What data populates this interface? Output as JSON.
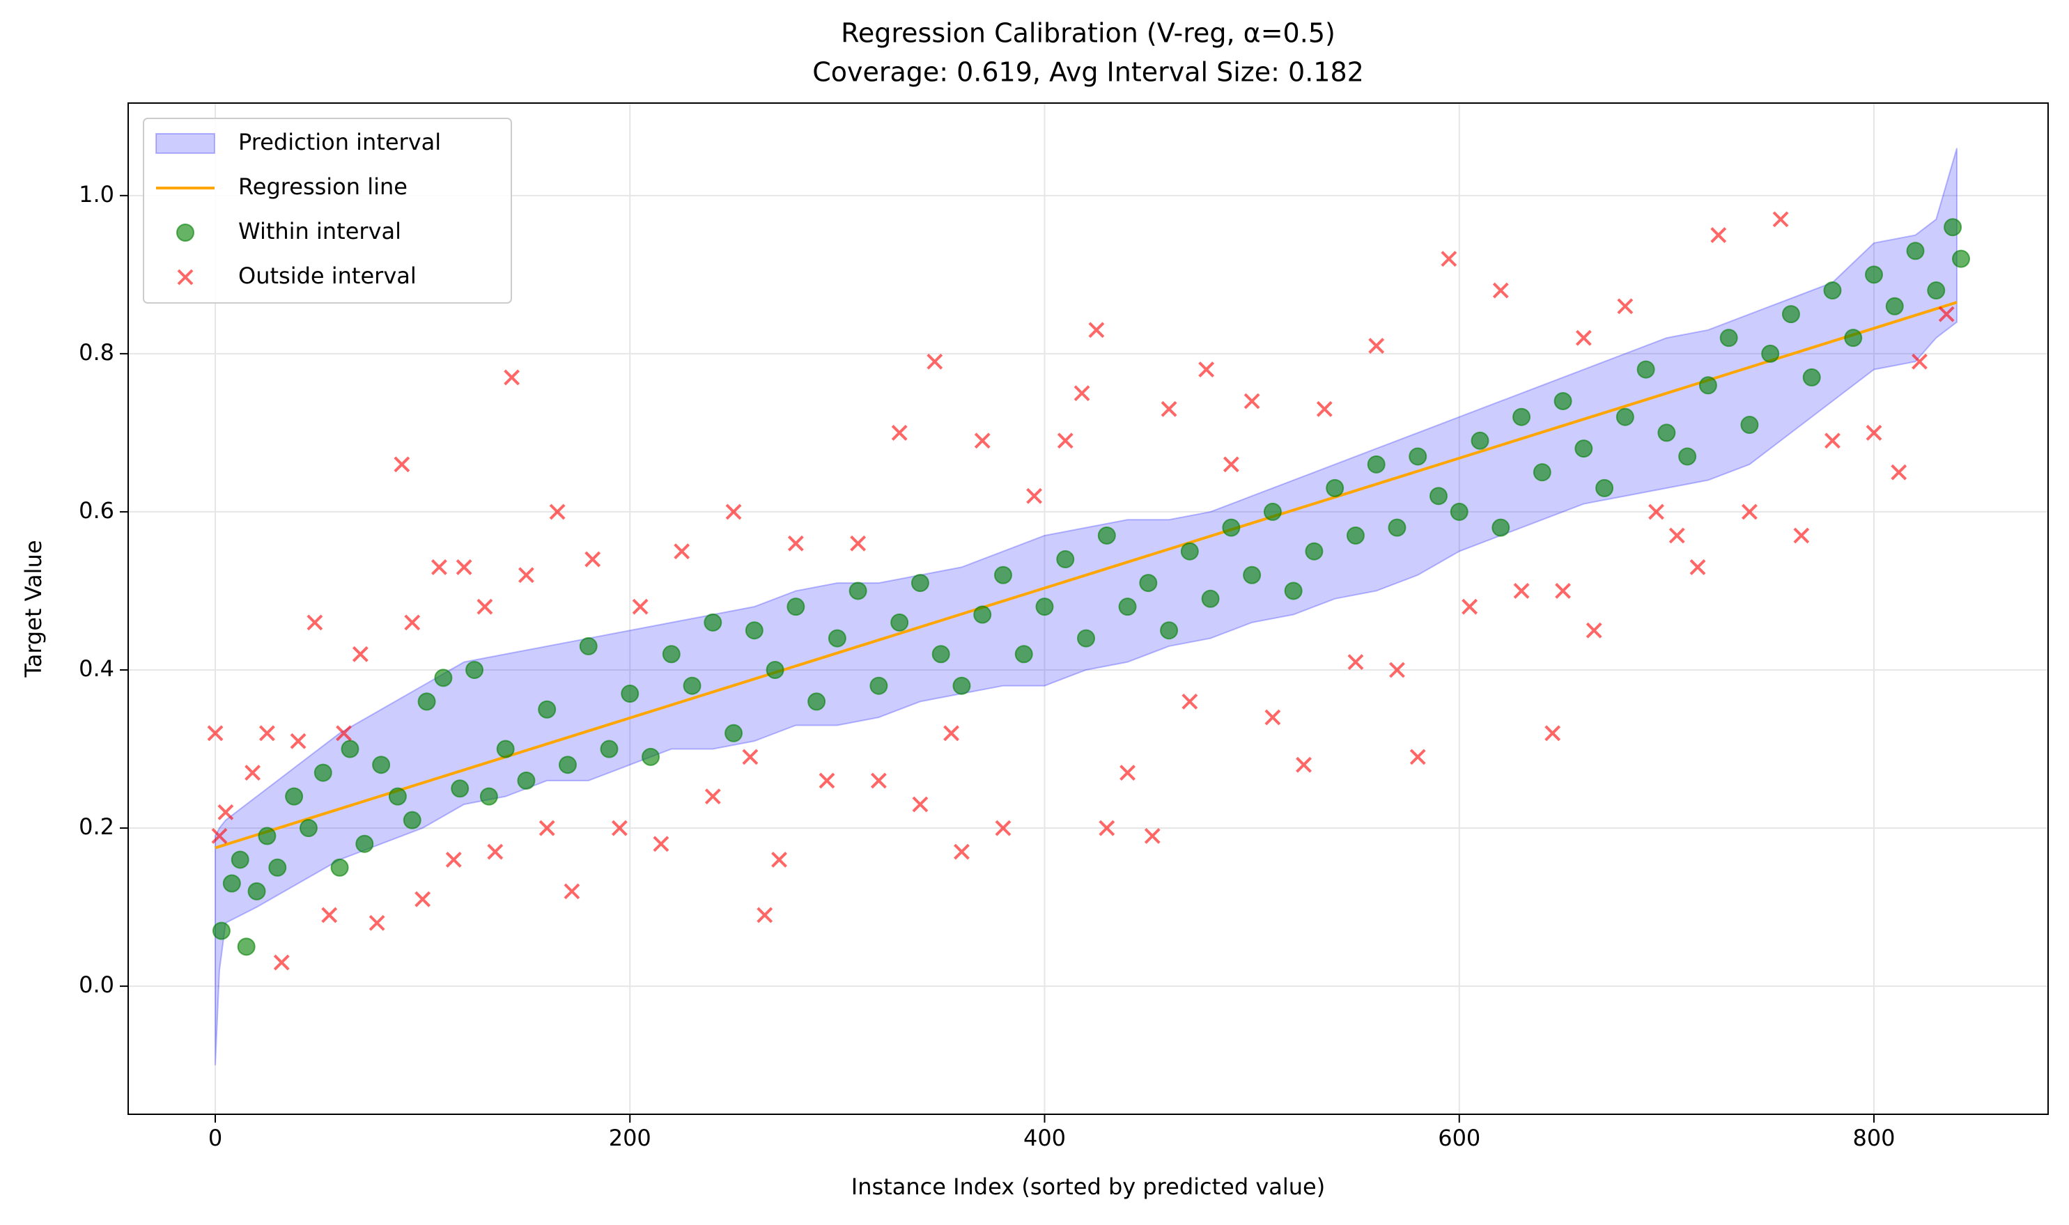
{
  "chart_data": {
    "type": "scatter",
    "title": "Regression Calibration (V-reg, α=0.5)",
    "subtitle": "Coverage: 0.619, Avg Interval Size: 0.182",
    "x_label": "Instance Index (sorted by predicted value)",
    "y_label": "Target Value",
    "xlim": [
      -42,
      884
    ],
    "ylim": [
      -0.162,
      1.117
    ],
    "xticks": [
      0,
      200,
      400,
      600,
      800
    ],
    "yticks": [
      {
        "value": 0,
        "label": "0.0"
      },
      0.2,
      0.4,
      0.6,
      0.8,
      {
        "value": 1,
        "label": "1.0"
      }
    ],
    "grid": true,
    "legend": "upper left",
    "series": [
      {
        "name": "Prediction interval",
        "kind": "band",
        "color": "#0000ff",
        "x": [
          0,
          2,
          5,
          20,
          40,
          60,
          80,
          100,
          120,
          140,
          160,
          180,
          200,
          220,
          240,
          260,
          280,
          300,
          320,
          340,
          360,
          380,
          400,
          420,
          440,
          460,
          480,
          500,
          520,
          540,
          560,
          580,
          600,
          620,
          640,
          660,
          680,
          700,
          720,
          740,
          760,
          780,
          800,
          820,
          830,
          840
        ],
        "lower": [
          -0.1,
          0.02,
          0.08,
          0.1,
          0.13,
          0.16,
          0.18,
          0.2,
          0.23,
          0.24,
          0.26,
          0.26,
          0.28,
          0.3,
          0.3,
          0.31,
          0.33,
          0.33,
          0.34,
          0.36,
          0.37,
          0.38,
          0.38,
          0.4,
          0.41,
          0.43,
          0.44,
          0.46,
          0.47,
          0.49,
          0.5,
          0.52,
          0.55,
          0.57,
          0.59,
          0.61,
          0.62,
          0.63,
          0.64,
          0.66,
          0.7,
          0.74,
          0.78,
          0.79,
          0.82,
          0.84
        ],
        "upper": [
          0.19,
          0.2,
          0.21,
          0.24,
          0.28,
          0.32,
          0.35,
          0.38,
          0.41,
          0.42,
          0.43,
          0.44,
          0.45,
          0.46,
          0.47,
          0.48,
          0.5,
          0.51,
          0.51,
          0.52,
          0.53,
          0.55,
          0.57,
          0.58,
          0.59,
          0.59,
          0.6,
          0.62,
          0.64,
          0.66,
          0.68,
          0.7,
          0.72,
          0.74,
          0.76,
          0.78,
          0.8,
          0.82,
          0.83,
          0.85,
          0.87,
          0.89,
          0.94,
          0.95,
          0.97,
          1.06
        ]
      },
      {
        "name": "Regression line",
        "kind": "line",
        "color": "#ffa500",
        "x": [
          0,
          840
        ],
        "values": [
          0.175,
          0.865
        ]
      },
      {
        "name": "Within interval",
        "kind": "circle",
        "color": "#008000",
        "x": [
          3,
          8,
          12,
          15,
          20,
          25,
          30,
          38,
          45,
          52,
          60,
          65,
          72,
          80,
          88,
          95,
          102,
          110,
          118,
          125,
          132,
          140,
          150,
          160,
          170,
          180,
          190,
          200,
          210,
          220,
          230,
          240,
          250,
          260,
          270,
          280,
          290,
          300,
          310,
          320,
          330,
          340,
          350,
          360,
          370,
          380,
          390,
          400,
          410,
          420,
          430,
          440,
          450,
          460,
          470,
          480,
          490,
          500,
          510,
          520,
          530,
          540,
          550,
          560,
          570,
          580,
          590,
          600,
          610,
          620,
          630,
          640,
          650,
          660,
          670,
          680,
          690,
          700,
          710,
          720,
          730,
          740,
          750,
          760,
          770,
          780,
          790,
          800,
          810,
          820,
          830,
          838,
          842
        ],
        "values": [
          0.07,
          0.13,
          0.16,
          0.05,
          0.12,
          0.19,
          0.15,
          0.24,
          0.2,
          0.27,
          0.15,
          0.3,
          0.18,
          0.28,
          0.24,
          0.21,
          0.36,
          0.39,
          0.25,
          0.4,
          0.24,
          0.3,
          0.26,
          0.35,
          0.28,
          0.43,
          0.3,
          0.37,
          0.29,
          0.42,
          0.38,
          0.46,
          0.32,
          0.45,
          0.4,
          0.48,
          0.36,
          0.44,
          0.5,
          0.38,
          0.46,
          0.51,
          0.42,
          0.38,
          0.47,
          0.52,
          0.42,
          0.48,
          0.54,
          0.44,
          0.57,
          0.48,
          0.51,
          0.45,
          0.55,
          0.49,
          0.58,
          0.52,
          0.6,
          0.5,
          0.55,
          0.63,
          0.57,
          0.66,
          0.58,
          0.67,
          0.62,
          0.6,
          0.69,
          0.58,
          0.72,
          0.65,
          0.74,
          0.68,
          0.63,
          0.72,
          0.78,
          0.7,
          0.67,
          0.76,
          0.82,
          0.71,
          0.8,
          0.85,
          0.77,
          0.88,
          0.82,
          0.9,
          0.86,
          0.93,
          0.88,
          0.96,
          0.92
        ]
      },
      {
        "name": "Outside interval",
        "kind": "cross",
        "color": "#ff0000",
        "x": [
          0,
          2,
          5,
          18,
          25,
          32,
          40,
          48,
          55,
          62,
          70,
          78,
          90,
          95,
          100,
          108,
          115,
          120,
          130,
          135,
          143,
          150,
          160,
          165,
          172,
          182,
          195,
          205,
          215,
          225,
          240,
          250,
          258,
          265,
          272,
          280,
          295,
          310,
          320,
          330,
          340,
          347,
          355,
          360,
          370,
          380,
          395,
          410,
          418,
          425,
          430,
          440,
          452,
          460,
          470,
          478,
          490,
          500,
          510,
          525,
          535,
          550,
          560,
          570,
          580,
          595,
          605,
          620,
          630,
          645,
          650,
          660,
          665,
          680,
          695,
          705,
          715,
          725,
          740,
          755,
          765,
          780,
          800,
          812,
          822,
          835
        ],
        "values": [
          0.32,
          0.19,
          0.22,
          0.27,
          0.32,
          0.03,
          0.31,
          0.46,
          0.09,
          0.32,
          0.42,
          0.08,
          0.66,
          0.46,
          0.11,
          0.53,
          0.16,
          0.53,
          0.48,
          0.17,
          0.77,
          0.52,
          0.2,
          0.6,
          0.12,
          0.54,
          0.2,
          0.48,
          0.18,
          0.55,
          0.24,
          0.6,
          0.29,
          0.09,
          0.16,
          0.56,
          0.26,
          0.56,
          0.26,
          0.7,
          0.23,
          0.79,
          0.32,
          0.17,
          0.69,
          0.2,
          0.62,
          0.69,
          0.75,
          0.83,
          0.2,
          0.27,
          0.19,
          0.73,
          0.36,
          0.78,
          0.66,
          0.74,
          0.34,
          0.28,
          0.73,
          0.41,
          0.81,
          0.4,
          0.29,
          0.92,
          0.48,
          0.88,
          0.5,
          0.32,
          0.5,
          0.82,
          0.45,
          0.86,
          0.6,
          0.57,
          0.53,
          0.95,
          0.6,
          0.97,
          0.57,
          0.69,
          0.7,
          0.65,
          0.79,
          0.85
        ]
      }
    ]
  }
}
